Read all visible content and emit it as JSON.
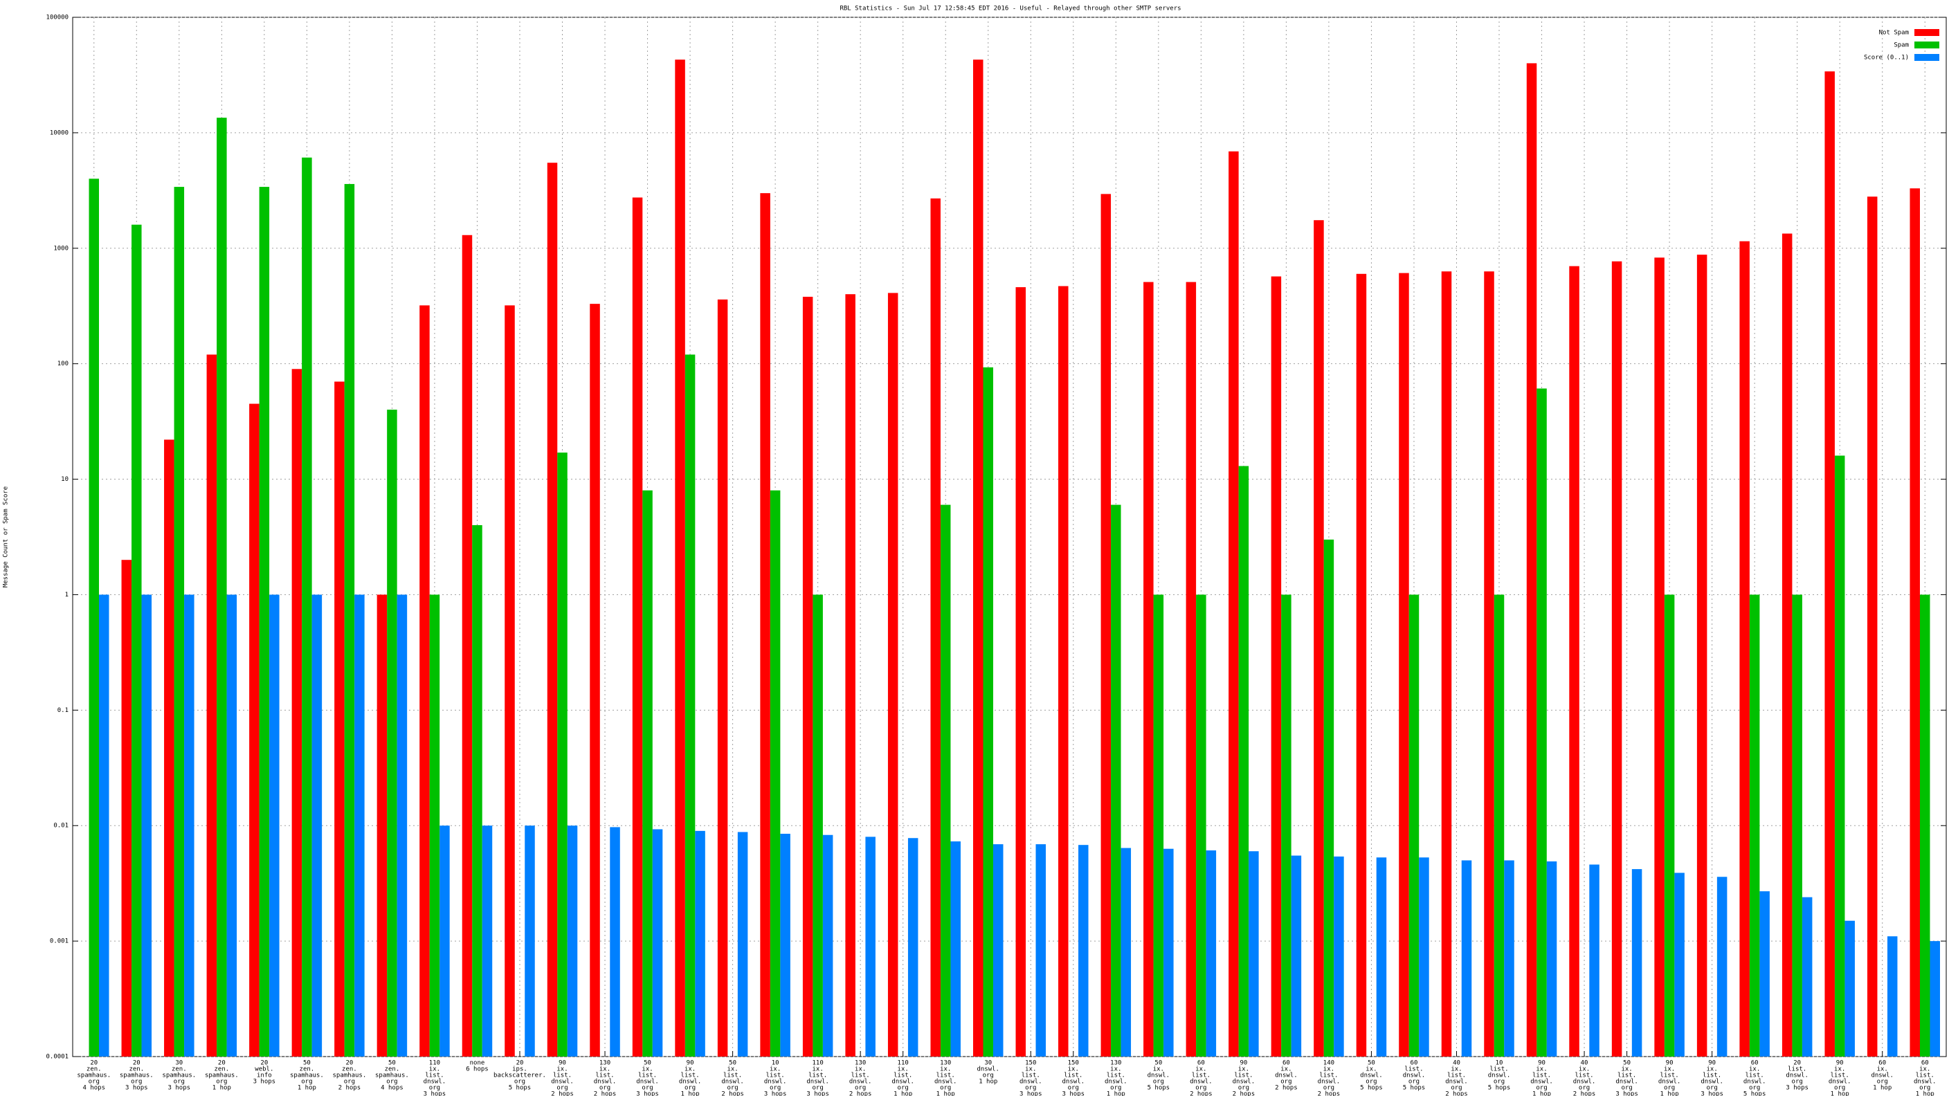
{
  "chart_data": {
    "type": "bar",
    "title": "RBL Statistics - Sun Jul 17 12:58:45 EDT 2016 - Useful - Relayed through other SMTP servers",
    "ylabel": "Message Count or Spam Score",
    "log_scale": true,
    "grid": true,
    "legend_position": "top-right",
    "ylim": [
      0.0001,
      100000
    ],
    "yticks": [
      0.0001,
      0.001,
      0.01,
      0.1,
      1,
      10,
      100,
      1000,
      10000,
      100000
    ],
    "categories": [
      [
        "20",
        "zen.",
        "spamhaus.",
        "org",
        "4 hops"
      ],
      [
        "20",
        "zen.",
        "spamhaus.",
        "org",
        "3 hops"
      ],
      [
        "30",
        "zen.",
        "spamhaus.",
        "org",
        "3 hops"
      ],
      [
        "20",
        "zen.",
        "spamhaus.",
        "org",
        "1 hop"
      ],
      [
        "20",
        "webl.",
        "info",
        "3 hops"
      ],
      [
        "50",
        "zen.",
        "spamhaus.",
        "org",
        "1 hop"
      ],
      [
        "20",
        "zen.",
        "spamhaus.",
        "org",
        "2 hops"
      ],
      [
        "50",
        "zen.",
        "spamhaus.",
        "org",
        "4 hops"
      ],
      [
        "110",
        "ix.",
        "list.",
        "dnswl.",
        "org",
        "3 hops"
      ],
      [
        "none",
        "6 hops"
      ],
      [
        "20",
        "ips.",
        "backscatterer.",
        "org",
        "5 hops"
      ],
      [
        "90",
        "ix.",
        "list.",
        "dnswl.",
        "org",
        "2 hops"
      ],
      [
        "130",
        "ix.",
        "list.",
        "dnswl.",
        "org",
        "2 hops"
      ],
      [
        "50",
        "ix.",
        "list.",
        "dnswl.",
        "org",
        "3 hops"
      ],
      [
        "90",
        "ix.",
        "list.",
        "dnswl.",
        "org",
        "1 hop"
      ],
      [
        "50",
        "ix.",
        "list.",
        "dnswl.",
        "org",
        "2 hops"
      ],
      [
        "10",
        "ix.",
        "list.",
        "dnswl.",
        "org",
        "3 hops"
      ],
      [
        "110",
        "ix.",
        "list.",
        "dnswl.",
        "org",
        "3 hops"
      ],
      [
        "130",
        "ix.",
        "list.",
        "dnswl.",
        "org",
        "2 hops"
      ],
      [
        "110",
        "ix.",
        "list.",
        "dnswl.",
        "org",
        "1 hop"
      ],
      [
        "130",
        "ix.",
        "list.",
        "dnswl.",
        "org",
        "1 hop"
      ],
      [
        "30",
        "dnswl.",
        "org",
        "1 hop"
      ],
      [
        "150",
        "ix.",
        "list.",
        "dnswl.",
        "org",
        "3 hops"
      ],
      [
        "150",
        "ix.",
        "list.",
        "dnswl.",
        "org",
        "3 hops"
      ],
      [
        "130",
        "ix.",
        "list.",
        "dnswl.",
        "org",
        "1 hop"
      ],
      [
        "50",
        "ix.",
        "dnswl.",
        "org",
        "5 hops"
      ],
      [
        "60",
        "ix.",
        "list.",
        "dnswl.",
        "org",
        "2 hops"
      ],
      [
        "90",
        "ix.",
        "list.",
        "dnswl.",
        "org",
        "2 hops"
      ],
      [
        "60",
        "ix.",
        "dnswl.",
        "org",
        "2 hops"
      ],
      [
        "140",
        "ix.",
        "list.",
        "dnswl.",
        "org",
        "2 hops"
      ],
      [
        "50",
        "ix.",
        "dnswl.",
        "org",
        "5 hops"
      ],
      [
        "60",
        "list.",
        "dnswl.",
        "org",
        "5 hops"
      ],
      [
        "40",
        "ix.",
        "list.",
        "dnswl.",
        "org",
        "2 hops"
      ],
      [
        "10",
        "list.",
        "dnswl.",
        "org",
        "5 hops"
      ],
      [
        "90",
        "ix.",
        "list.",
        "dnswl.",
        "org",
        "1 hop"
      ],
      [
        "40",
        "ix.",
        "list.",
        "dnswl.",
        "org",
        "2 hops"
      ],
      [
        "50",
        "ix.",
        "list.",
        "dnswl.",
        "org",
        "3 hops"
      ],
      [
        "90",
        "ix.",
        "list.",
        "dnswl.",
        "org",
        "1 hop"
      ],
      [
        "90",
        "ix.",
        "list.",
        "dnswl.",
        "org",
        "3 hops"
      ],
      [
        "60",
        "ix.",
        "list.",
        "dnswl.",
        "org",
        "5 hops"
      ],
      [
        "20",
        "list.",
        "dnswl.",
        "org",
        "3 hops"
      ],
      [
        "90",
        "ix.",
        "list.",
        "dnswl.",
        "org",
        "1 hop"
      ],
      [
        "60",
        "ix.",
        "dnswl.",
        "org",
        "1 hop"
      ],
      [
        "60",
        "ix.",
        "list.",
        "dnswl.",
        "org",
        "1 hop"
      ]
    ],
    "series": [
      {
        "name": "Not Spam",
        "color": "#ff0000",
        "values": [
          null,
          2,
          22,
          120,
          45,
          90,
          70,
          1,
          320,
          1300,
          320,
          5500,
          330,
          2750,
          43000,
          360,
          3000,
          380,
          400,
          410,
          2700,
          43000,
          460,
          470,
          2950,
          510,
          510,
          6900,
          570,
          1750,
          600,
          610,
          630,
          630,
          40000,
          700,
          770,
          830,
          880,
          1150,
          1340,
          34000,
          2800,
          3300
        ]
      },
      {
        "name": "Spam",
        "color": "#00c000",
        "values": [
          4000,
          1600,
          3400,
          13500,
          3400,
          6100,
          3600,
          40,
          1,
          4,
          null,
          17,
          null,
          8,
          120,
          null,
          8,
          1,
          null,
          null,
          6,
          93,
          null,
          null,
          6,
          1,
          1,
          13,
          1,
          3,
          null,
          1,
          null,
          1,
          61,
          null,
          null,
          1,
          null,
          1,
          1,
          16,
          null,
          1
        ]
      },
      {
        "name": "Score (0..1)",
        "color": "#0080ff",
        "values": [
          1,
          1,
          1,
          1,
          1,
          1,
          1,
          1,
          0.01,
          0.01,
          0.01,
          0.01,
          0.0097,
          0.0093,
          0.009,
          0.0088,
          0.0085,
          0.0083,
          0.008,
          0.0078,
          0.0073,
          0.0069,
          0.0069,
          0.0068,
          0.0064,
          0.0063,
          0.0061,
          0.006,
          0.0055,
          0.0054,
          0.0053,
          0.0053,
          0.005,
          0.005,
          0.0049,
          0.0046,
          0.0042,
          0.0039,
          0.0036,
          0.0027,
          0.0024,
          0.0015,
          0.0011,
          0.001
        ]
      }
    ]
  }
}
